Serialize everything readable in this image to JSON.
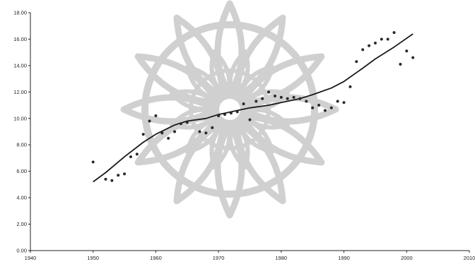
{
  "chart_data": {
    "type": "scatter",
    "title": "",
    "xlabel": "",
    "ylabel": "",
    "xlim": [
      1940,
      2010
    ],
    "ylim": [
      0,
      18
    ],
    "x_ticks": [
      1940,
      1950,
      1960,
      1970,
      1980,
      1990,
      2000,
      2010
    ],
    "x_tick_labels": [
      "1940",
      "1950",
      "1960",
      "1970",
      "1980",
      "1990",
      "2000",
      "2010"
    ],
    "y_ticks": [
      0,
      2,
      4,
      6,
      8,
      10,
      12,
      14,
      16,
      18
    ],
    "y_tick_labels": [
      "0.00",
      "2.00",
      "4.00",
      "6.00",
      "8.00",
      "10.00",
      "12.00",
      "14.00",
      "16.00",
      "18.00"
    ],
    "grid": false,
    "legend": "none",
    "colors": {
      "points": "#2a2a2a",
      "trend": "#1a1a1a",
      "axis": "#222222",
      "watermark": "#d0d0d0"
    },
    "series": [
      {
        "kind": "points",
        "x": [
          1950,
          1952,
          1953,
          1954,
          1955,
          1956,
          1957,
          1958,
          1959,
          1960,
          1961,
          1962,
          1963,
          1964,
          1965,
          1967,
          1968,
          1969,
          1970,
          1971,
          1972,
          1973,
          1974,
          1975,
          1976,
          1977,
          1978,
          1979,
          1980,
          1981,
          1982,
          1983,
          1984,
          1985,
          1986,
          1987,
          1988,
          1989,
          1990,
          1991,
          1992,
          1993,
          1994,
          1995,
          1996,
          1997,
          1998,
          1999,
          2000,
          2001
        ],
        "y": [
          6.7,
          5.4,
          5.3,
          5.7,
          5.8,
          7.1,
          7.3,
          8.8,
          9.8,
          10.2,
          8.9,
          8.5,
          9.0,
          9.6,
          9.7,
          9.0,
          8.9,
          9.3,
          10.2,
          10.3,
          10.4,
          10.5,
          11.1,
          9.9,
          11.3,
          11.5,
          12.0,
          11.7,
          11.6,
          11.5,
          11.6,
          11.5,
          11.3,
          10.8,
          11.0,
          10.6,
          10.8,
          11.3,
          11.2,
          12.4,
          14.3,
          15.2,
          15.5,
          15.7,
          16.0,
          16.0,
          16.5,
          14.1,
          15.1,
          14.6
        ]
      },
      {
        "kind": "trend",
        "x": [
          1950,
          1952,
          1955,
          1958,
          1960,
          1963,
          1965,
          1968,
          1970,
          1973,
          1975,
          1978,
          1980,
          1983,
          1985,
          1988,
          1990,
          1993,
          1995,
          1998,
          2001
        ],
        "y": [
          5.2,
          5.9,
          7.1,
          8.2,
          8.8,
          9.5,
          9.8,
          10.0,
          10.3,
          10.6,
          10.8,
          11.0,
          11.2,
          11.5,
          11.8,
          12.3,
          12.8,
          13.8,
          14.5,
          15.4,
          16.4
        ]
      }
    ]
  }
}
